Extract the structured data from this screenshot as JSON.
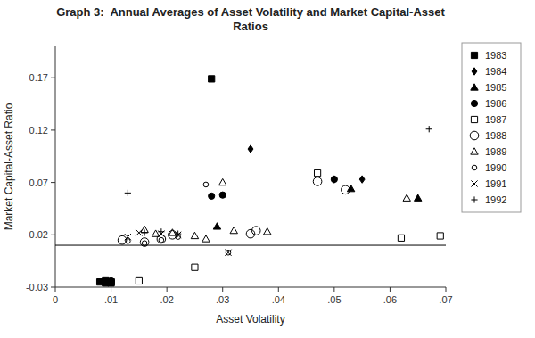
{
  "chart_data": {
    "type": "scatter",
    "title": "Graph 3:  Annual Averages of Asset Volatility and Market Capital-Asset\nRatios",
    "x_label": "Asset Volatility",
    "y_label": "Market Capital-Asset Ratio",
    "xlim": [
      0,
      0.07
    ],
    "ylim": [
      -0.03,
      0.2
    ],
    "xticks": [
      0,
      {
        "value": 0.01,
        "label": ".01"
      },
      {
        "value": 0.02,
        "label": ".02"
      },
      {
        "value": 0.03,
        "label": ".03"
      },
      {
        "value": 0.04,
        "label": ".04"
      },
      {
        "value": 0.05,
        "label": ".05"
      },
      {
        "value": 0.06,
        "label": ".06"
      },
      {
        "value": 0.07,
        "label": ".07"
      }
    ],
    "yticks": [
      -0.03,
      0.02,
      0.07,
      0.12,
      0.17
    ],
    "hline": 0.01,
    "grid": false,
    "legend": "right",
    "color": "#000000",
    "series": [
      {
        "name": "1983",
        "marker": "filled-square",
        "x": [
          0.008,
          0.009,
          0.009,
          0.009,
          0.01,
          0.01,
          0.028
        ],
        "values": [
          -0.025,
          -0.025,
          -0.026,
          -0.024,
          -0.026,
          -0.025,
          0.169
        ]
      },
      {
        "name": "1984",
        "marker": "filled-diamond",
        "x": [
          0.035,
          0.05,
          0.055
        ],
        "values": [
          0.102,
          0.073,
          0.073
        ]
      },
      {
        "name": "1985",
        "marker": "filled-triangle",
        "x": [
          0.009,
          0.029,
          0.053,
          0.065
        ],
        "values": [
          -0.025,
          0.028,
          0.064,
          0.055
        ]
      },
      {
        "name": "1986",
        "marker": "filled-circle",
        "x": [
          0.01,
          0.028,
          0.03,
          0.05
        ],
        "values": [
          -0.024,
          0.057,
          0.058,
          0.073
        ]
      },
      {
        "name": "1987",
        "marker": "open-square",
        "x": [
          0.01,
          0.015,
          0.025,
          0.047,
          0.062,
          0.069
        ],
        "values": [
          -0.025,
          -0.024,
          -0.011,
          0.079,
          0.017,
          0.019
        ]
      },
      {
        "name": "1988",
        "marker": "large-open-circle",
        "x": [
          0.012,
          0.016,
          0.019,
          0.021,
          0.035,
          0.036,
          0.047,
          0.052
        ],
        "values": [
          0.015,
          0.013,
          0.016,
          0.02,
          0.021,
          0.024,
          0.071,
          0.063
        ]
      },
      {
        "name": "1989",
        "marker": "open-triangle",
        "x": [
          0.016,
          0.018,
          0.021,
          0.025,
          0.027,
          0.03,
          0.032,
          0.038,
          0.063
        ],
        "values": [
          0.025,
          0.021,
          0.022,
          0.019,
          0.016,
          0.07,
          0.024,
          0.023,
          0.055
        ]
      },
      {
        "name": "1990",
        "marker": "small-open-circle",
        "x": [
          0.013,
          0.016,
          0.019,
          0.022,
          0.027,
          0.031
        ],
        "values": [
          0.014,
          0.012,
          0.015,
          0.018,
          0.068,
          0.003
        ]
      },
      {
        "name": "1991",
        "marker": "x",
        "x": [
          0.013,
          0.015,
          0.019,
          0.022,
          0.031
        ],
        "values": [
          0.018,
          0.022,
          0.021,
          0.02,
          0.003
        ]
      },
      {
        "name": "1992",
        "marker": "plus",
        "x": [
          0.013,
          0.016,
          0.019,
          0.022,
          0.067
        ],
        "values": [
          0.06,
          0.022,
          0.023,
          0.021,
          0.121
        ]
      }
    ]
  }
}
